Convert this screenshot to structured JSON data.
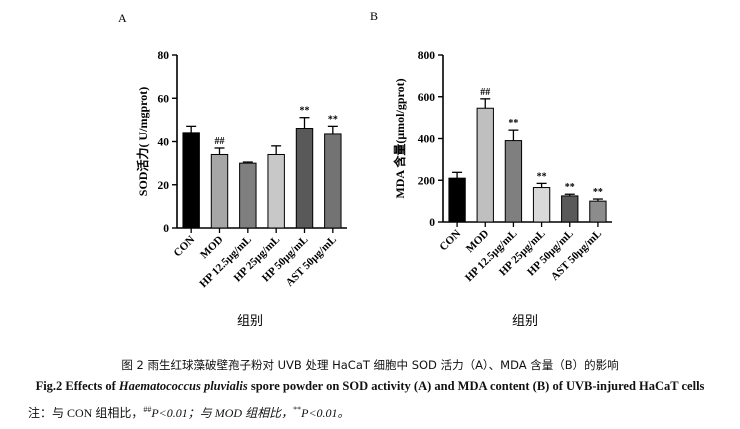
{
  "chart_data": [
    {
      "panel_label": "A",
      "type": "bar",
      "categories": [
        "CON",
        "MOD",
        "HP 12.5μg/mL",
        "HP 25μg/mL",
        "HP 50μg/mL",
        "AST 50μg/mL"
      ],
      "values": [
        44,
        34,
        30,
        34,
        46,
        43.5
      ],
      "errors": [
        3,
        3,
        0.5,
        4,
        5,
        3.5
      ],
      "significance": [
        "",
        "##",
        "",
        "",
        "**",
        "**"
      ],
      "bar_colors": [
        "#000000",
        "#a6a6a6",
        "#7f7f7f",
        "#c8c8c8",
        "#595959",
        "#737373"
      ],
      "ylabel": "SOD活力( U/mgprot)",
      "xlabel": "组别",
      "ylim": [
        0,
        80
      ],
      "yticks": [
        0,
        20,
        40,
        60,
        80
      ]
    },
    {
      "panel_label": "B",
      "type": "bar",
      "categories": [
        "CON",
        "MOD",
        "HP 12.5μg/mL",
        "HP 25μg/mL",
        "HP 50μg/mL",
        "AST 50μg/mL"
      ],
      "values": [
        210,
        545,
        390,
        165,
        125,
        100
      ],
      "errors": [
        28,
        45,
        50,
        20,
        8,
        10
      ],
      "significance": [
        "",
        "##",
        "**",
        "**",
        "**",
        "**"
      ],
      "bar_colors": [
        "#000000",
        "#bfbfbf",
        "#7f7f7f",
        "#d9d9d9",
        "#595959",
        "#8c8c8c"
      ],
      "ylabel": "MDA 含量(μmol/gprot)",
      "xlabel": "组别",
      "ylim": [
        0,
        800
      ],
      "yticks": [
        0,
        200,
        400,
        600,
        800
      ]
    }
  ],
  "caption": {
    "cn": "图 2  雨生红球藻破壁孢子粉对 UVB 处理 HaCaT 细胞中 SOD 活力（A）、MDA 含量（B）的影响",
    "en_prefix": "Fig.2 Effects of ",
    "en_italic": "Haematococcus pluvialis",
    "en_suffix": " spore powder on SOD activity (A) and MDA content (B) of UVB-injured HaCaT cells",
    "note_1": "注：与 CON 组相比，",
    "note_sup_1": "##",
    "note_2": "P<0.01；与 MOD 组相比，",
    "note_sup_2": "**",
    "note_3": "P<0.01。"
  }
}
